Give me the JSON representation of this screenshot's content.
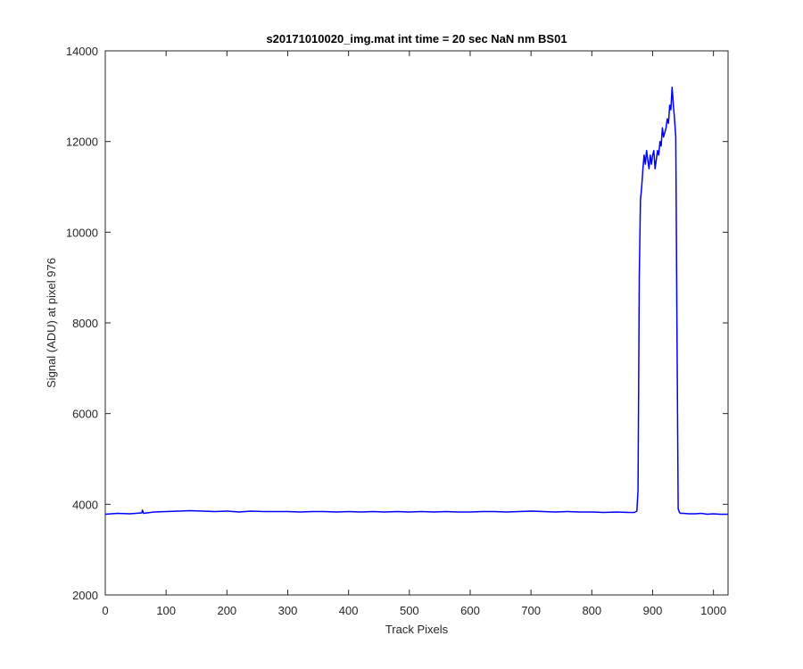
{
  "chart_data": {
    "type": "line",
    "title": "s20171010020_img.mat int time = 20 sec  NaN nm BS01",
    "xlabel": "Track Pixels",
    "ylabel": "Signal (ADU) at pixel 976",
    "xlim": [
      0,
      1024
    ],
    "ylim": [
      2000,
      14000
    ],
    "xticks": [
      0,
      100,
      200,
      300,
      400,
      500,
      600,
      700,
      800,
      900,
      1000
    ],
    "yticks": [
      2000,
      4000,
      6000,
      8000,
      10000,
      12000,
      14000
    ],
    "xtick_labels": [
      "0",
      "100",
      "200",
      "300",
      "400",
      "500",
      "600",
      "700",
      "800",
      "900",
      "1000"
    ],
    "ytick_labels": [
      "2000",
      "4000",
      "6000",
      "8000",
      "10000",
      "12000",
      "14000"
    ],
    "grid": false,
    "series_color": "#0000ff",
    "series": [
      {
        "x": [
          0,
          20,
          40,
          60,
          61,
          63,
          80,
          100,
          120,
          140,
          160,
          180,
          200,
          220,
          240,
          260,
          280,
          300,
          320,
          340,
          360,
          380,
          400,
          420,
          440,
          460,
          480,
          500,
          520,
          540,
          560,
          580,
          600,
          620,
          640,
          660,
          680,
          700,
          720,
          740,
          760,
          780,
          800,
          820,
          840,
          860,
          870,
          874,
          876,
          878,
          880,
          882,
          884,
          886,
          888,
          890,
          892,
          894,
          896,
          898,
          900,
          902,
          904,
          906,
          908,
          910,
          912,
          914,
          916,
          918,
          920,
          922,
          924,
          926,
          928,
          930,
          932,
          934,
          936,
          938,
          940,
          942,
          944,
          946,
          950,
          960,
          970,
          980,
          990,
          1000,
          1010,
          1024
        ],
        "y": [
          3780,
          3800,
          3790,
          3810,
          3870,
          3800,
          3830,
          3840,
          3850,
          3860,
          3850,
          3840,
          3850,
          3830,
          3850,
          3840,
          3840,
          3840,
          3830,
          3840,
          3840,
          3830,
          3840,
          3830,
          3840,
          3830,
          3840,
          3830,
          3840,
          3830,
          3840,
          3830,
          3830,
          3840,
          3840,
          3830,
          3840,
          3850,
          3840,
          3830,
          3840,
          3830,
          3830,
          3820,
          3830,
          3820,
          3820,
          3850,
          4300,
          9000,
          10700,
          11000,
          11400,
          11700,
          11500,
          11800,
          11600,
          11400,
          11700,
          11500,
          11700,
          11800,
          11400,
          11600,
          11800,
          11700,
          12000,
          11900,
          12300,
          12100,
          12200,
          12300,
          12500,
          12400,
          12800,
          12700,
          13200,
          12800,
          12500,
          12100,
          8000,
          3900,
          3820,
          3800,
          3800,
          3790,
          3790,
          3800,
          3780,
          3790,
          3780,
          3780
        ]
      }
    ]
  }
}
